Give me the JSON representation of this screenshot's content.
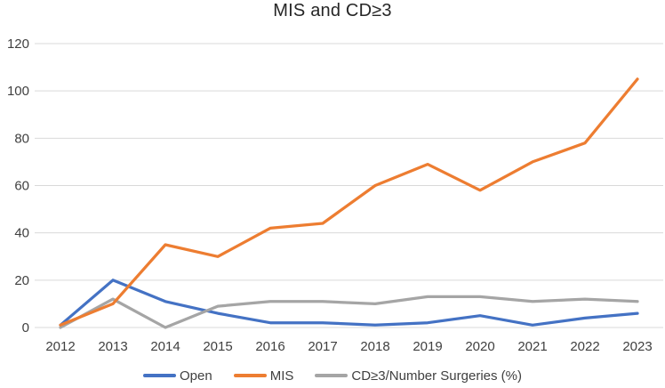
{
  "chart_data": {
    "type": "line",
    "title": "MIS and CD≥3",
    "xlabel": "",
    "ylabel": "",
    "categories": [
      "2012",
      "2013",
      "2014",
      "2015",
      "2016",
      "2017",
      "2018",
      "2019",
      "2020",
      "2021",
      "2022",
      "2023"
    ],
    "series": [
      {
        "name": "Open",
        "color": "#4472C4",
        "values": [
          1,
          20,
          11,
          6,
          2,
          2,
          1,
          2,
          5,
          1,
          4,
          6
        ]
      },
      {
        "name": "MIS",
        "color": "#ED7D31",
        "values": [
          1,
          10,
          35,
          30,
          42,
          44,
          60,
          69,
          58,
          70,
          78,
          105
        ]
      },
      {
        "name": "CD≥3/Number Surgeries (%)",
        "color": "#A5A5A5",
        "values": [
          0,
          12,
          0,
          9,
          11,
          11,
          10,
          13,
          13,
          11,
          12,
          11
        ]
      }
    ],
    "ylim": [
      0,
      120
    ],
    "yticks": [
      0,
      20,
      40,
      60,
      80,
      100,
      120
    ],
    "grid": true,
    "legend_position": "bottom"
  },
  "colors": {
    "gridline": "#D9D9D9",
    "tick_text": "#404040",
    "title_text": "#262626",
    "background": "#FFFFFF"
  }
}
